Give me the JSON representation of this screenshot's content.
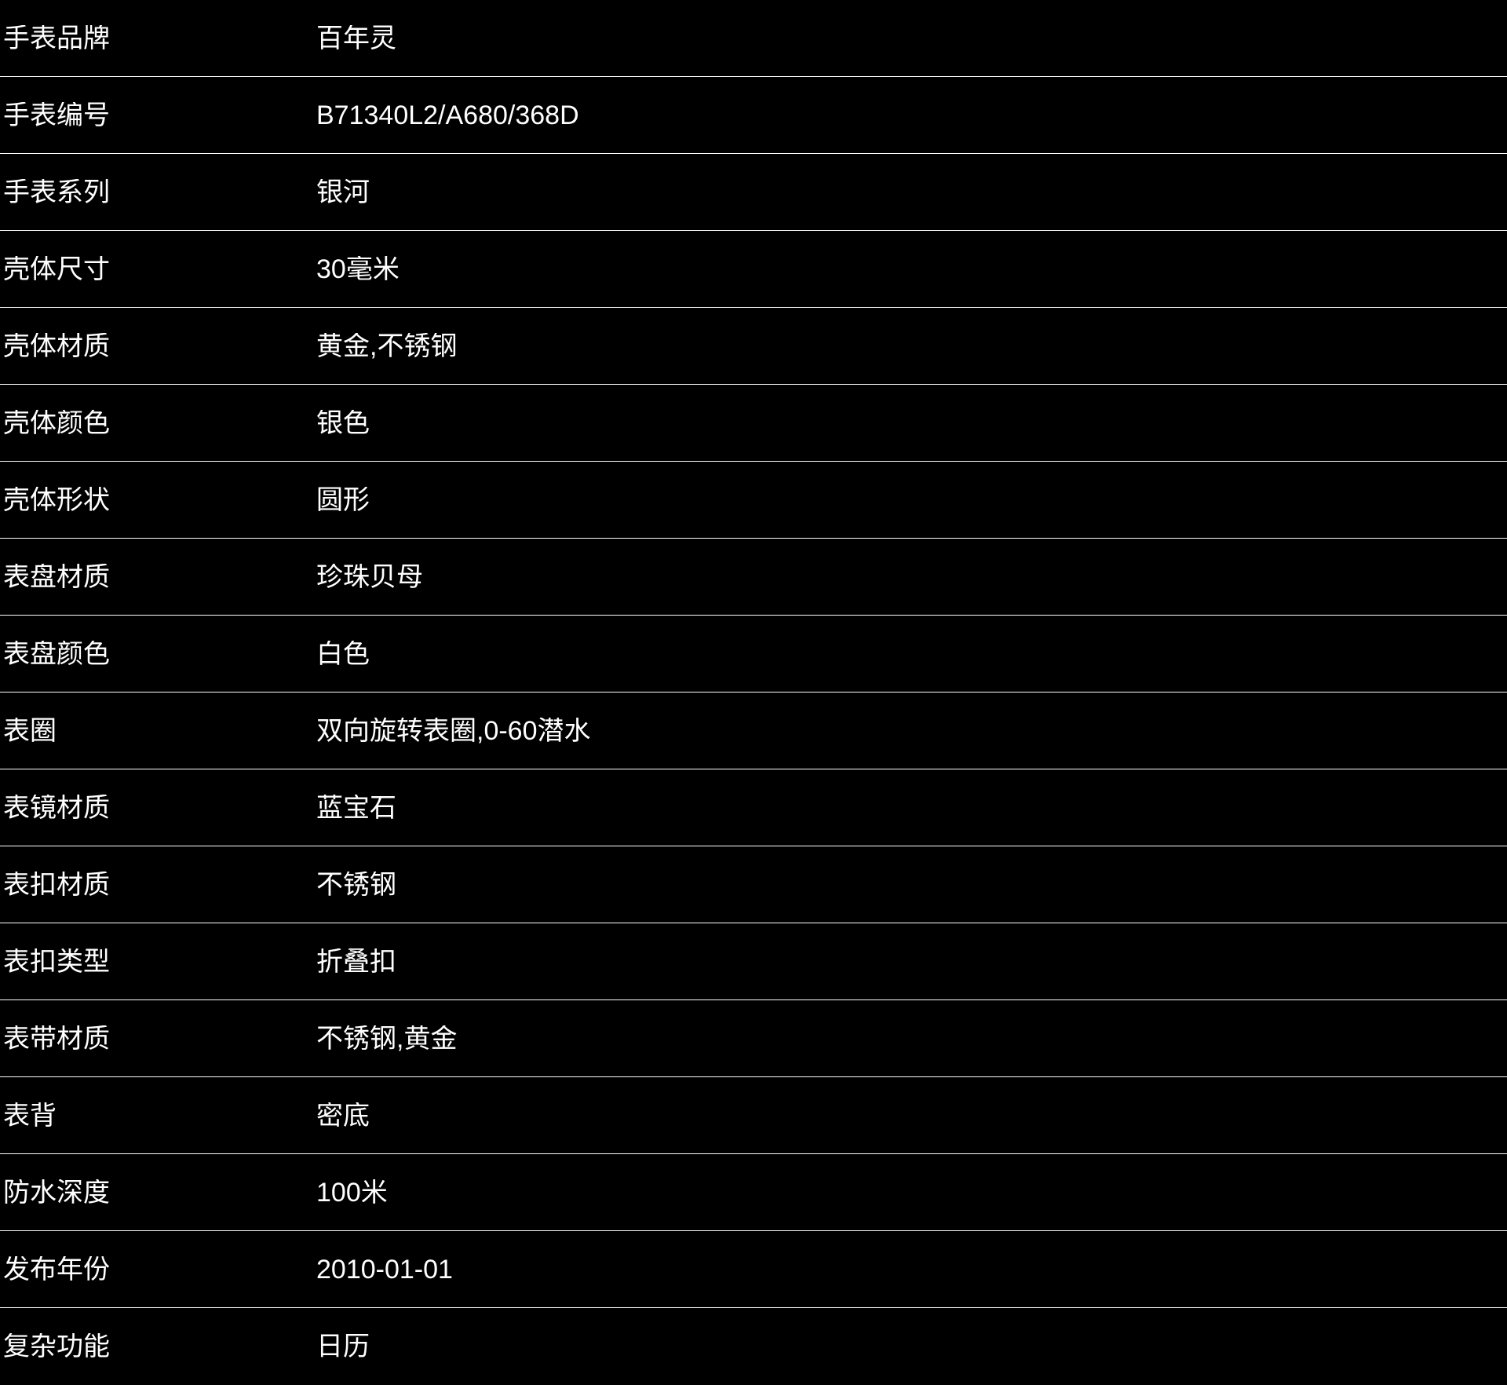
{
  "table": {
    "rows": [
      {
        "label": "手表品牌",
        "value": "百年灵"
      },
      {
        "label": "手表编号",
        "value": "B71340L2/A680/368D"
      },
      {
        "label": "手表系列",
        "value": "银河"
      },
      {
        "label": "壳体尺寸",
        "value": "30毫米"
      },
      {
        "label": "壳体材质",
        "value": "黄金,不锈钢"
      },
      {
        "label": "壳体颜色",
        "value": "银色"
      },
      {
        "label": "壳体形状",
        "value": "圆形"
      },
      {
        "label": "表盘材质",
        "value": "珍珠贝母"
      },
      {
        "label": "表盘颜色",
        "value": "白色"
      },
      {
        "label": "表圈",
        "value": "双向旋转表圈,0-60潜水"
      },
      {
        "label": "表镜材质",
        "value": "蓝宝石"
      },
      {
        "label": "表扣材质",
        "value": "不锈钢"
      },
      {
        "label": "表扣类型",
        "value": "折叠扣"
      },
      {
        "label": "表带材质",
        "value": "不锈钢,黄金"
      },
      {
        "label": "表背",
        "value": "密底"
      },
      {
        "label": "防水深度",
        "value": "100米"
      },
      {
        "label": "发布年份",
        "value": "2010-01-01"
      },
      {
        "label": "复杂功能",
        "value": "日历"
      }
    ]
  },
  "colors": {
    "background": "#000000",
    "text": "#ffffff",
    "divider": "#ffffff"
  }
}
